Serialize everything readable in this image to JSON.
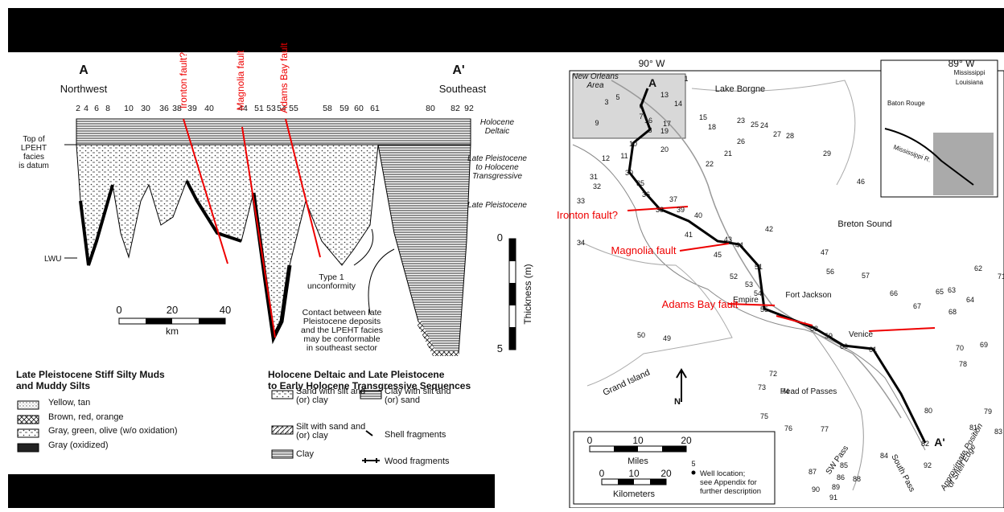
{
  "cross_section": {
    "end_labels": [
      "A",
      "A'"
    ],
    "directions": [
      "Northwest",
      "Southeast"
    ],
    "datum_note": [
      "Top of",
      "LPEHT",
      "facies",
      "is datum"
    ],
    "lwu": "LWU",
    "wells": [
      2,
      4,
      6,
      8,
      10,
      30,
      36,
      38,
      39,
      40,
      44,
      51,
      53,
      54,
      55,
      58,
      59,
      60,
      61,
      80,
      82,
      92
    ],
    "faults": [
      "Ironton fault?",
      "Magnolia fault",
      "Adams Bay fault"
    ],
    "units": [
      [
        "Holocene",
        "Deltaic"
      ],
      [
        "Late Pleistocene",
        "to Holocene",
        "Transgressive"
      ],
      [
        "Late Pleistocene"
      ]
    ],
    "unconformity": [
      "Type 1",
      "unconformity"
    ],
    "contact_note": [
      "Contact between late",
      "Pleistocene deposits",
      "and the LPEHT facies",
      "may be conformable",
      "in southeast sector"
    ],
    "km_scale": {
      "ticks": [
        0,
        20,
        40
      ],
      "unit": "km"
    },
    "thickness_scale": {
      "ticks": [
        0,
        5
      ],
      "label": "Thickness (m)"
    }
  },
  "legend": {
    "groups": [
      {
        "title": [
          "Late Pleistocene Stiff Silty Muds",
          "and Muddy Silts"
        ],
        "items": [
          "Yellow, tan",
          "Brown, red, orange",
          "Gray, green, olive (w/o oxidation)",
          "Gray (oxidized)"
        ]
      },
      {
        "title": [
          "Holocene Deltaic and Late Pleistocene",
          "to Early Holocene Transgressive Sequences"
        ],
        "items": [
          [
            "Sand with silt and",
            "(or) clay"
          ],
          [
            "Silt with sand and",
            "(or) clay"
          ],
          [
            "Clay"
          ],
          [
            "Clay with silt and",
            "(or) sand"
          ],
          [
            "Shell fragments"
          ],
          [
            "Wood fragments"
          ]
        ]
      }
    ]
  },
  "map": {
    "longitudes": [
      "90° W",
      "89° W"
    ],
    "places": [
      "Lake Borgne",
      "Breton Sound",
      "Fort Jackson",
      "Empire",
      "Venice",
      "Grand Island",
      "Head of Passes",
      "SW Pass",
      "South Pass",
      "A",
      "A'",
      "N"
    ],
    "area": [
      "New Orleans",
      "Area"
    ],
    "shelf_edge": [
      "Approximate Position",
      "of Shelf Edge"
    ],
    "inset": [
      "Mississippi",
      "Louisiana",
      "Baton Rouge",
      "Mississippi R."
    ],
    "faults": [
      "Ironton fault?",
      "Magnolia fault",
      "Adams Bay fault"
    ],
    "wells": [
      1,
      13,
      14,
      3,
      5,
      6,
      7,
      16,
      17,
      8,
      19,
      9,
      10,
      20,
      15,
      18,
      23,
      25,
      24,
      26,
      27,
      28,
      21,
      22,
      29,
      46,
      12,
      11,
      31,
      32,
      30,
      35,
      36,
      37,
      33,
      38,
      39,
      40,
      41,
      42,
      34,
      43,
      44,
      45,
      47,
      51,
      56,
      57,
      62,
      71,
      52,
      53,
      54,
      55,
      66,
      65,
      63,
      64,
      67,
      68,
      58,
      59,
      60,
      61,
      50,
      49,
      70,
      69,
      78,
      72,
      73,
      74,
      75,
      79,
      81,
      83,
      80,
      76,
      77,
      82,
      84,
      92,
      85,
      86,
      88,
      87,
      89,
      90,
      91
    ],
    "scale": {
      "miles_ticks": [
        0,
        10,
        20
      ],
      "miles": "Miles",
      "km_ticks": [
        0,
        10,
        20
      ],
      "km": "Kilometers"
    },
    "well_key": {
      "number": 5,
      "text": [
        "Well location;",
        "see Appendix for",
        "further description"
      ]
    }
  }
}
